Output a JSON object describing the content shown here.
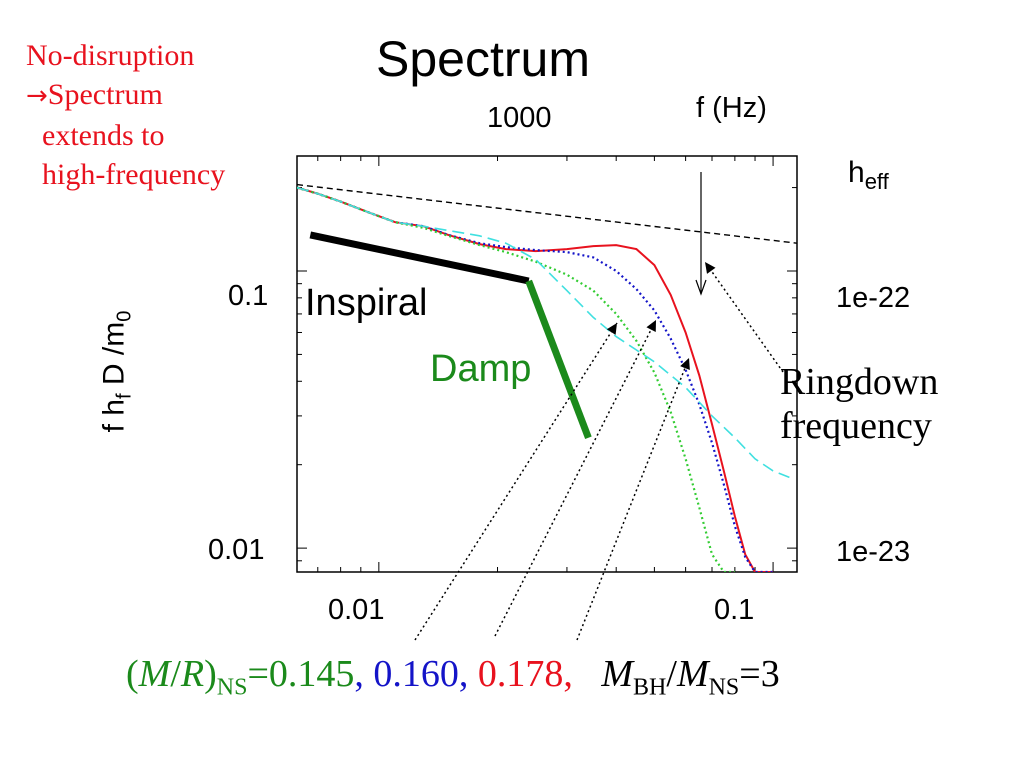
{
  "colors": {
    "red": "#e8121e",
    "green": "#1b8a1b",
    "blue": "#1414c8",
    "cyan": "#40e0e0",
    "black": "#000000"
  },
  "note": {
    "line1": "No-disruption",
    "arrow": "→",
    "line2": "Spectrum",
    "line3": "extends  to",
    "line4": "high-frequency"
  },
  "chart_data": {
    "type": "line",
    "title": "Spectrum",
    "xlabel": "",
    "ylabel_main": "f h",
    "ylabel_sub": "f",
    "ylabel_rest": " D /m",
    "ylabel_sub2": "0",
    "x_scale": "log",
    "y_scale": "log",
    "xlim": [
      0.0062,
      0.115
    ],
    "ylim": [
      0.0082,
      0.26
    ],
    "x_ticks": [
      0.01,
      0.1
    ],
    "x_tick_labels": [
      "0.01",
      "0.1"
    ],
    "y_ticks": [
      0.01,
      0.1
    ],
    "y_tick_labels": [
      "0.01",
      "0.1"
    ],
    "top_axis_label": "f (Hz)",
    "top_tick_labels": [
      "1000"
    ],
    "right_axis_label": "h",
    "right_axis_label_sub": "eff",
    "right_tick_labels": [
      "1e-22",
      "1e-23"
    ],
    "series": [
      {
        "style": "solid-red",
        "x": [
          0.0062,
          0.007,
          0.008,
          0.0095,
          0.011,
          0.013,
          0.015,
          0.018,
          0.021,
          0.025,
          0.03,
          0.035,
          0.04,
          0.045,
          0.05,
          0.055,
          0.06,
          0.065,
          0.07,
          0.075,
          0.08,
          0.085,
          0.09,
          0.095,
          0.1
        ],
        "y": [
          0.2,
          0.19,
          0.178,
          0.162,
          0.15,
          0.145,
          0.135,
          0.125,
          0.12,
          0.118,
          0.12,
          0.123,
          0.124,
          0.12,
          0.105,
          0.082,
          0.06,
          0.042,
          0.028,
          0.019,
          0.013,
          0.0095,
          0.0082,
          0.0082,
          0.0082
        ]
      },
      {
        "style": "dotted-blue",
        "x": [
          0.0062,
          0.007,
          0.008,
          0.0095,
          0.011,
          0.013,
          0.015,
          0.018,
          0.021,
          0.025,
          0.03,
          0.035,
          0.04,
          0.045,
          0.05,
          0.055,
          0.06,
          0.065,
          0.07,
          0.075,
          0.08,
          0.085,
          0.09,
          0.095,
          0.1
        ],
        "y": [
          0.2,
          0.19,
          0.178,
          0.162,
          0.15,
          0.145,
          0.135,
          0.126,
          0.122,
          0.119,
          0.117,
          0.112,
          0.1,
          0.086,
          0.072,
          0.057,
          0.044,
          0.033,
          0.024,
          0.017,
          0.012,
          0.0093,
          0.0082,
          0.0082,
          0.0082
        ]
      },
      {
        "style": "dotted-green",
        "x": [
          0.0062,
          0.007,
          0.008,
          0.0095,
          0.011,
          0.013,
          0.015,
          0.018,
          0.021,
          0.025,
          0.03,
          0.035,
          0.04,
          0.045,
          0.05,
          0.055,
          0.06,
          0.065,
          0.07,
          0.075,
          0.08
        ],
        "y": [
          0.2,
          0.19,
          0.178,
          0.162,
          0.15,
          0.143,
          0.134,
          0.124,
          0.117,
          0.108,
          0.097,
          0.085,
          0.07,
          0.056,
          0.043,
          0.031,
          0.021,
          0.014,
          0.0095,
          0.0082,
          0.0082
        ]
      },
      {
        "style": "dashed-cyan",
        "x": [
          0.0062,
          0.007,
          0.008,
          0.0095,
          0.011,
          0.013,
          0.015,
          0.018,
          0.021,
          0.025,
          0.03,
          0.035,
          0.04,
          0.05,
          0.06,
          0.07,
          0.08,
          0.09,
          0.1,
          0.11
        ],
        "y": [
          0.2,
          0.19,
          0.178,
          0.162,
          0.15,
          0.145,
          0.14,
          0.134,
          0.126,
          0.11,
          0.085,
          0.068,
          0.058,
          0.047,
          0.038,
          0.03,
          0.025,
          0.021,
          0.019,
          0.018
        ]
      },
      {
        "style": "dashed-black",
        "x": [
          0.0062,
          0.115
        ],
        "y": [
          0.205,
          0.126
        ]
      },
      {
        "style": "thick-black",
        "x": [
          0.0067,
          0.024
        ],
        "y": [
          0.135,
          0.092
        ]
      },
      {
        "style": "thick-green",
        "x": [
          0.024,
          0.034
        ],
        "y": [
          0.092,
          0.025
        ]
      }
    ],
    "annotations": {
      "inspiral": "Inspiral",
      "damp": "Damp",
      "ringdown_line1": "Ringdown",
      "ringdown_line2": "frequency"
    }
  },
  "caption": {
    "open": "(",
    "m": "M",
    "slash": "/",
    "r": "R",
    "close": ")",
    "ns_sub": "NS",
    "eq_green": "=0.145",
    "comma1": ", ",
    "blue_val": "0.160,",
    "sp1": " ",
    "red_val": "0.178,",
    "sp2": "   ",
    "mbh": "M",
    "bh_sub": "BH",
    "slash2": "/",
    "mns": "M",
    "ns_sub2": "NS",
    "eq3": "=3"
  }
}
